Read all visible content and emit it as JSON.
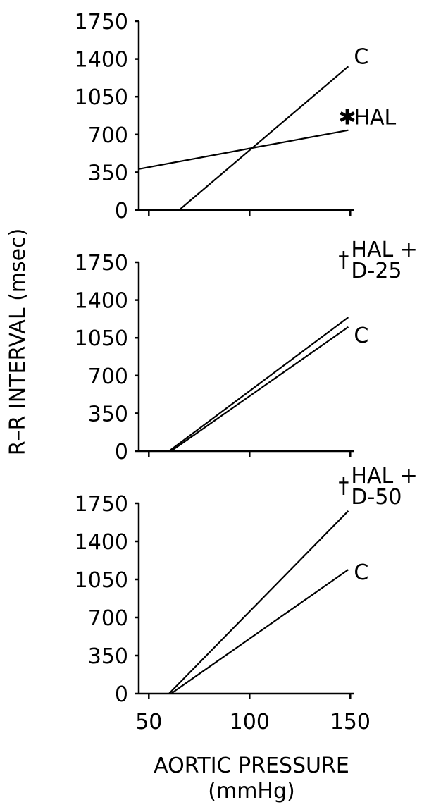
{
  "figure": {
    "ylabel": "R–R INTERVAL (msec)",
    "xlabel_line1": "AORTIC PRESSURE",
    "xlabel_line2": "(mmHg)"
  },
  "chart_data": [
    {
      "type": "line",
      "panel": "top",
      "xlim": [
        45,
        152
      ],
      "ylim": [
        0,
        1750
      ],
      "x_ticks": [
        50,
        100,
        150
      ],
      "y_ticks": [
        0,
        350,
        700,
        1050,
        1400,
        1750
      ],
      "series": [
        {
          "name": "C",
          "points": [
            [
              65,
              0
            ],
            [
              149,
              1330
            ]
          ]
        },
        {
          "name": "HAL",
          "marker": "✱",
          "points": [
            [
              45,
              380
            ],
            [
              149,
              740
            ]
          ]
        }
      ]
    },
    {
      "type": "line",
      "panel": "middle",
      "xlim": [
        45,
        152
      ],
      "ylim": [
        0,
        1750
      ],
      "x_ticks": [
        50,
        100,
        150
      ],
      "y_ticks": [
        0,
        350,
        700,
        1050,
        1400,
        1750
      ],
      "series": [
        {
          "name": "HAL + D-25",
          "name_line1": "HAL +",
          "name_line2": "D-25",
          "marker": "†",
          "points": [
            [
              60,
              0
            ],
            [
              149,
              1240
            ]
          ]
        },
        {
          "name": "C",
          "points": [
            [
              61,
              0
            ],
            [
              149,
              1150
            ]
          ]
        }
      ]
    },
    {
      "type": "line",
      "panel": "bottom",
      "xlim": [
        45,
        152
      ],
      "ylim": [
        0,
        1750
      ],
      "x_ticks": [
        50,
        100,
        150
      ],
      "y_ticks": [
        0,
        350,
        700,
        1050,
        1400,
        1750
      ],
      "series": [
        {
          "name": "HAL + D-50",
          "name_line1": "HAL +",
          "name_line2": "D-50",
          "marker": "†",
          "points": [
            [
              60,
              0
            ],
            [
              149,
              1680
            ]
          ]
        },
        {
          "name": "C",
          "points": [
            [
              61,
              0
            ],
            [
              149,
              1140
            ]
          ]
        }
      ]
    }
  ]
}
